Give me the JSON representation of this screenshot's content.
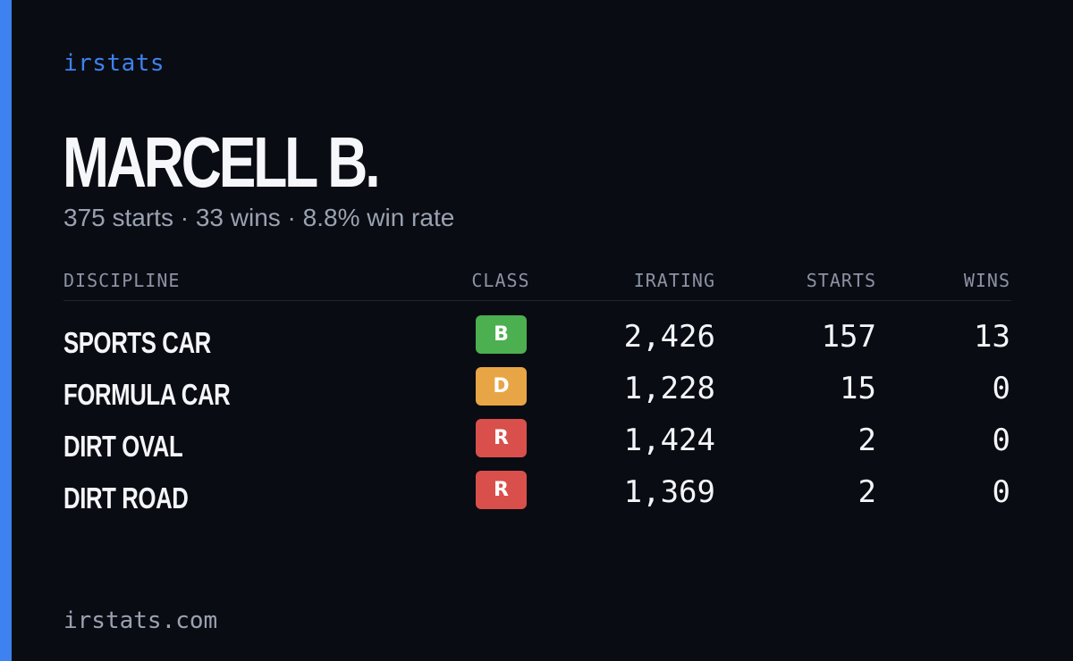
{
  "brand": "irstats",
  "driver": {
    "name": "MARCELL B.",
    "summary": "375 starts · 33 wins · 8.8% win rate"
  },
  "table": {
    "headers": {
      "discipline": "DISCIPLINE",
      "class": "CLASS",
      "irating": "IRATING",
      "starts": "STARTS",
      "wins": "WINS"
    },
    "rows": [
      {
        "discipline": "SPORTS CAR",
        "class": "B",
        "class_color": "#4caf50",
        "irating": "2,426",
        "starts": "157",
        "wins": "13"
      },
      {
        "discipline": "FORMULA CAR",
        "class": "D",
        "class_color": "#e8a545",
        "irating": "1,228",
        "starts": "15",
        "wins": "0"
      },
      {
        "discipline": "DIRT OVAL",
        "class": "R",
        "class_color": "#d94f4c",
        "irating": "1,424",
        "starts": "2",
        "wins": "0"
      },
      {
        "discipline": "DIRT ROAD",
        "class": "R",
        "class_color": "#d94f4c",
        "irating": "1,369",
        "starts": "2",
        "wins": "0"
      }
    ]
  },
  "footer": {
    "site": "irstats.com"
  },
  "colors": {
    "accent": "#3d82f0",
    "background": "#0a0c13"
  }
}
